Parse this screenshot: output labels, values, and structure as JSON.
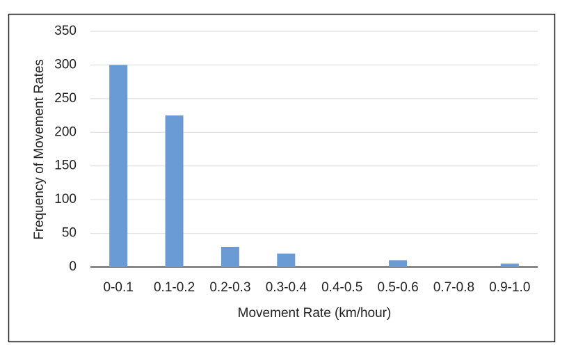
{
  "chart_data": {
    "type": "bar",
    "x_label": "Movement Rate (km/hour)",
    "y_label": "Frequency of Movement Rates",
    "categories": [
      "0-0.1",
      "0.1-0.2",
      "0.2-0.3",
      "0.3-0.4",
      "0.4-0.5",
      "0.5-0.6",
      "0.7-0.8",
      "0.9-1.0"
    ],
    "values": [
      300,
      225,
      30,
      20,
      0,
      10,
      0,
      5
    ],
    "color": "#6a9bd4",
    "ylim": [
      0,
      350
    ],
    "yticks": [
      0,
      50,
      100,
      150,
      200,
      250,
      300,
      350
    ],
    "grid": true
  }
}
